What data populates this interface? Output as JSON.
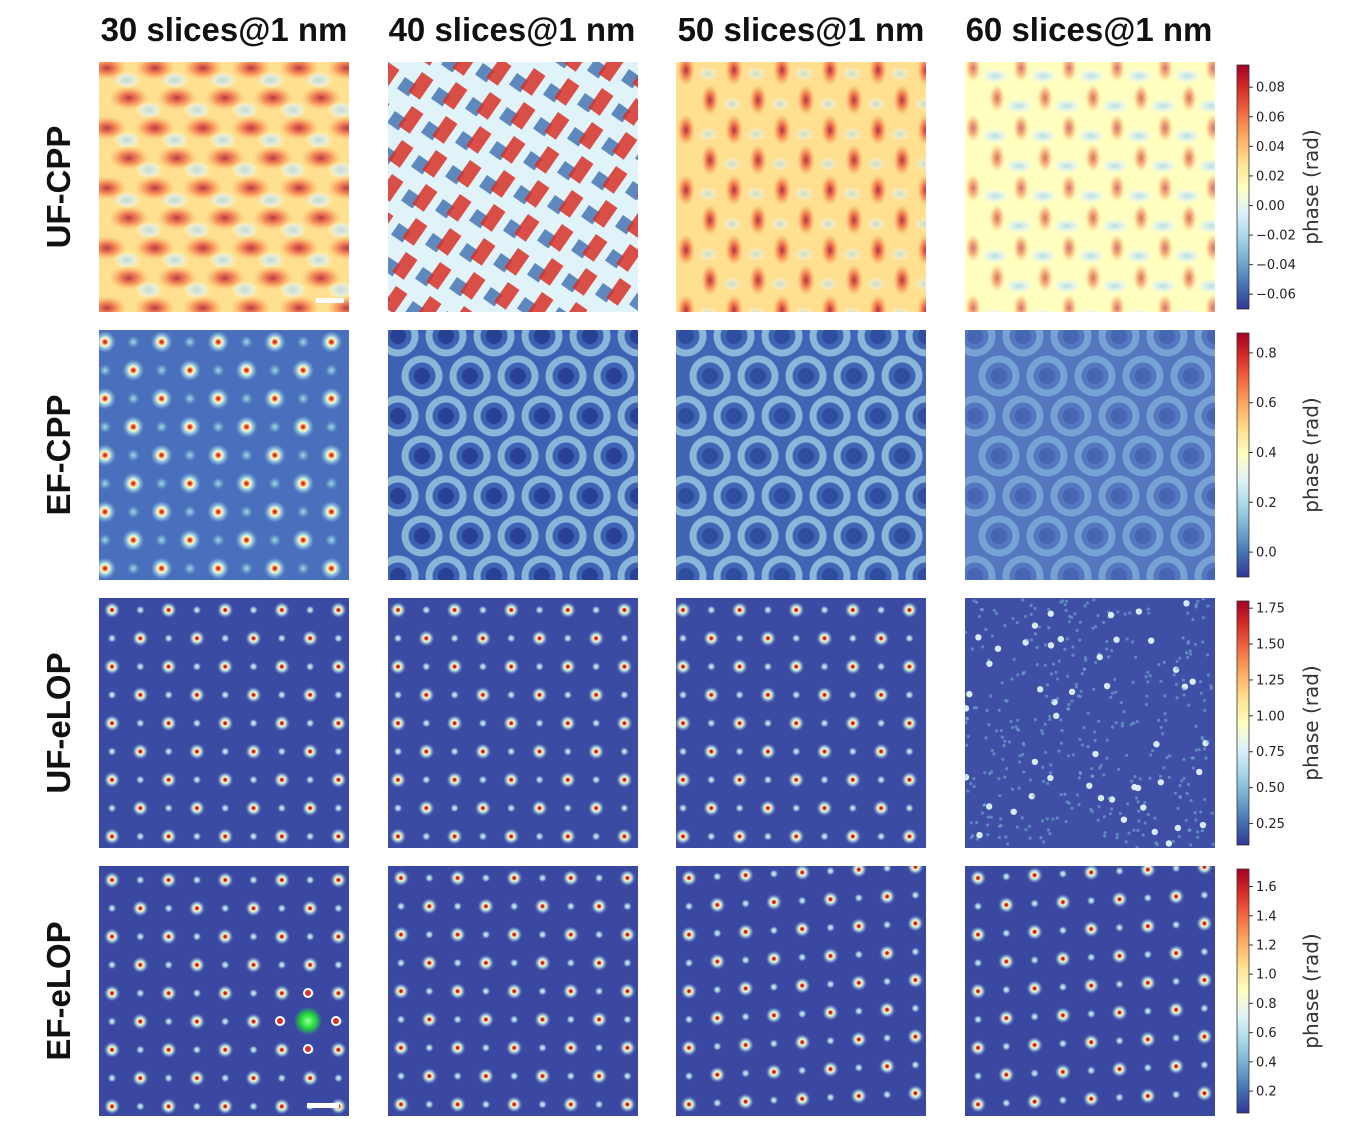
{
  "chart_data": {
    "type": "heatmap",
    "title": "",
    "columns": [
      "30 slices@1 nm",
      "40 slices@1 nm",
      "50 slices@1 nm",
      "60 slices@1 nm"
    ],
    "rows": [
      {
        "label": "UF-CPP",
        "colorbar": {
          "label": "phase (rad)",
          "range": [
            -0.07,
            0.095
          ],
          "ticks": [
            0.08,
            0.06,
            0.04,
            0.02,
            0.0,
            -0.02,
            -0.04,
            -0.06
          ],
          "tick_labels": [
            "0.08",
            "0.06",
            "0.04",
            "0.02",
            "0.00",
            "−0.02",
            "−0.04",
            "−0.06"
          ]
        },
        "panels": [
          {
            "column": "30 slices@1 nm",
            "pattern": "warm lattice with bright blobs",
            "scale_bar": true
          },
          {
            "column": "40 slices@1 nm",
            "pattern": "diagonal red/blue lattice",
            "scale_bar": false
          },
          {
            "column": "50 slices@1 nm",
            "pattern": "red crescents on yellow",
            "scale_bar": false
          },
          {
            "column": "60 slices@1 nm",
            "pattern": "light blue swirls on yellow",
            "scale_bar": false
          }
        ]
      },
      {
        "label": "EF-CPP",
        "colorbar": {
          "label": "phase (rad)",
          "range": [
            -0.1,
            0.88
          ],
          "ticks": [
            0.8,
            0.6,
            0.4,
            0.2,
            0.0
          ],
          "tick_labels": [
            "0.8",
            "0.6",
            "0.4",
            "0.2",
            "0.0"
          ]
        },
        "panels": [
          {
            "column": "30 slices@1 nm",
            "pattern": "blue background with bright atomic peaks",
            "scale_bar": false
          },
          {
            "column": "40 slices@1 nm",
            "pattern": "blue ring lattice",
            "scale_bar": false
          },
          {
            "column": "50 slices@1 nm",
            "pattern": "blue ring lattice",
            "scale_bar": false
          },
          {
            "column": "60 slices@1 nm",
            "pattern": "faint blue lattice",
            "scale_bar": false
          }
        ]
      },
      {
        "label": "UF-eLOP",
        "colorbar": {
          "label": "phase (rad)",
          "range": [
            0.1,
            1.8
          ],
          "ticks": [
            1.75,
            1.5,
            1.25,
            1.0,
            0.75,
            0.5,
            0.25
          ],
          "tick_labels": [
            "1.75",
            "1.50",
            "1.25",
            "1.00",
            "0.75",
            "0.50",
            "0.25"
          ]
        },
        "panels": [
          {
            "column": "30 slices@1 nm",
            "pattern": "dark blue with atomic peaks",
            "scale_bar": false
          },
          {
            "column": "40 slices@1 nm",
            "pattern": "dark blue with atomic peaks",
            "scale_bar": false
          },
          {
            "column": "50 slices@1 nm",
            "pattern": "dark blue with atomic peaks",
            "scale_bar": false
          },
          {
            "column": "60 slices@1 nm",
            "pattern": "noisy speckle",
            "scale_bar": false
          }
        ]
      },
      {
        "label": "EF-eLOP",
        "colorbar": {
          "label": "phase (rad)",
          "range": [
            0.05,
            1.72
          ],
          "ticks": [
            1.6,
            1.4,
            1.2,
            1.0,
            0.8,
            0.6,
            0.4,
            0.2
          ],
          "tick_labels": [
            "1.6",
            "1.4",
            "1.2",
            "1.0",
            "0.8",
            "0.6",
            "0.4",
            "0.2"
          ]
        },
        "panels": [
          {
            "column": "30 slices@1 nm",
            "pattern": "dark blue with atomic peaks and green marker",
            "scale_bar": true
          },
          {
            "column": "40 slices@1 nm",
            "pattern": "dark blue with atomic peaks",
            "scale_bar": false
          },
          {
            "column": "50 slices@1 nm",
            "pattern": "dark blue with atomic peaks",
            "scale_bar": false
          },
          {
            "column": "60 slices@1 nm",
            "pattern": "dark blue with atomic peaks",
            "scale_bar": false
          }
        ]
      }
    ],
    "colormap": "RdYlBu_r",
    "colormap_stops": [
      "#313695",
      "#4575b4",
      "#74add1",
      "#abd9e9",
      "#e0f3f8",
      "#ffffbf",
      "#fee090",
      "#fdae61",
      "#f46d43",
      "#d73027",
      "#a50026"
    ],
    "highlight_color": "#22dd33"
  }
}
